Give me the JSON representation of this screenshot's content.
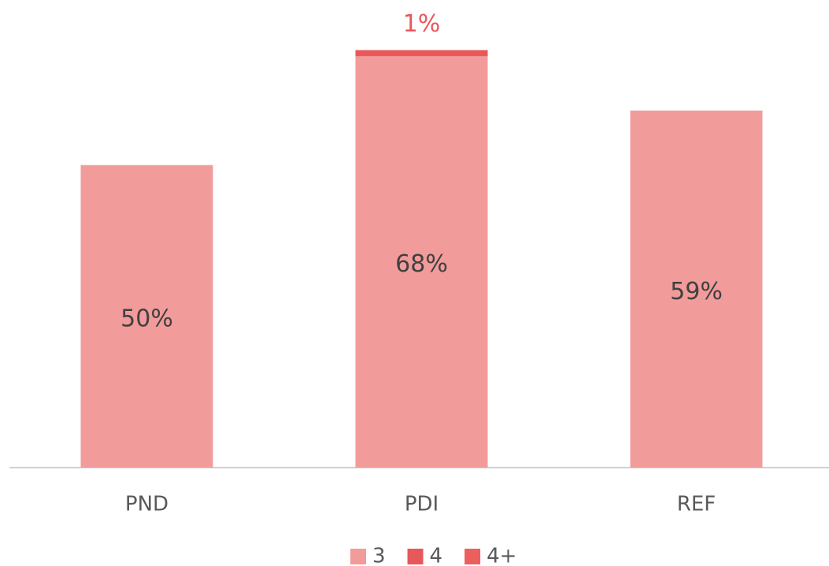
{
  "chart_data": {
    "type": "stacked_bar",
    "categories": [
      "PND",
      "PDI",
      "REF"
    ],
    "series": [
      {
        "name": "3",
        "color": "#f29b9b",
        "values": [
          50,
          68,
          59
        ],
        "value_labels": [
          "50%",
          "68%",
          "59%"
        ]
      },
      {
        "name": "4",
        "color": "#e8575a",
        "values": [
          null,
          1,
          null
        ],
        "value_labels": [
          null,
          "1%",
          null
        ]
      },
      {
        "name": "4+",
        "color": "#ec5f5f",
        "values": [
          null,
          null,
          null
        ]
      }
    ],
    "ylim": [
      0,
      70
    ]
  }
}
